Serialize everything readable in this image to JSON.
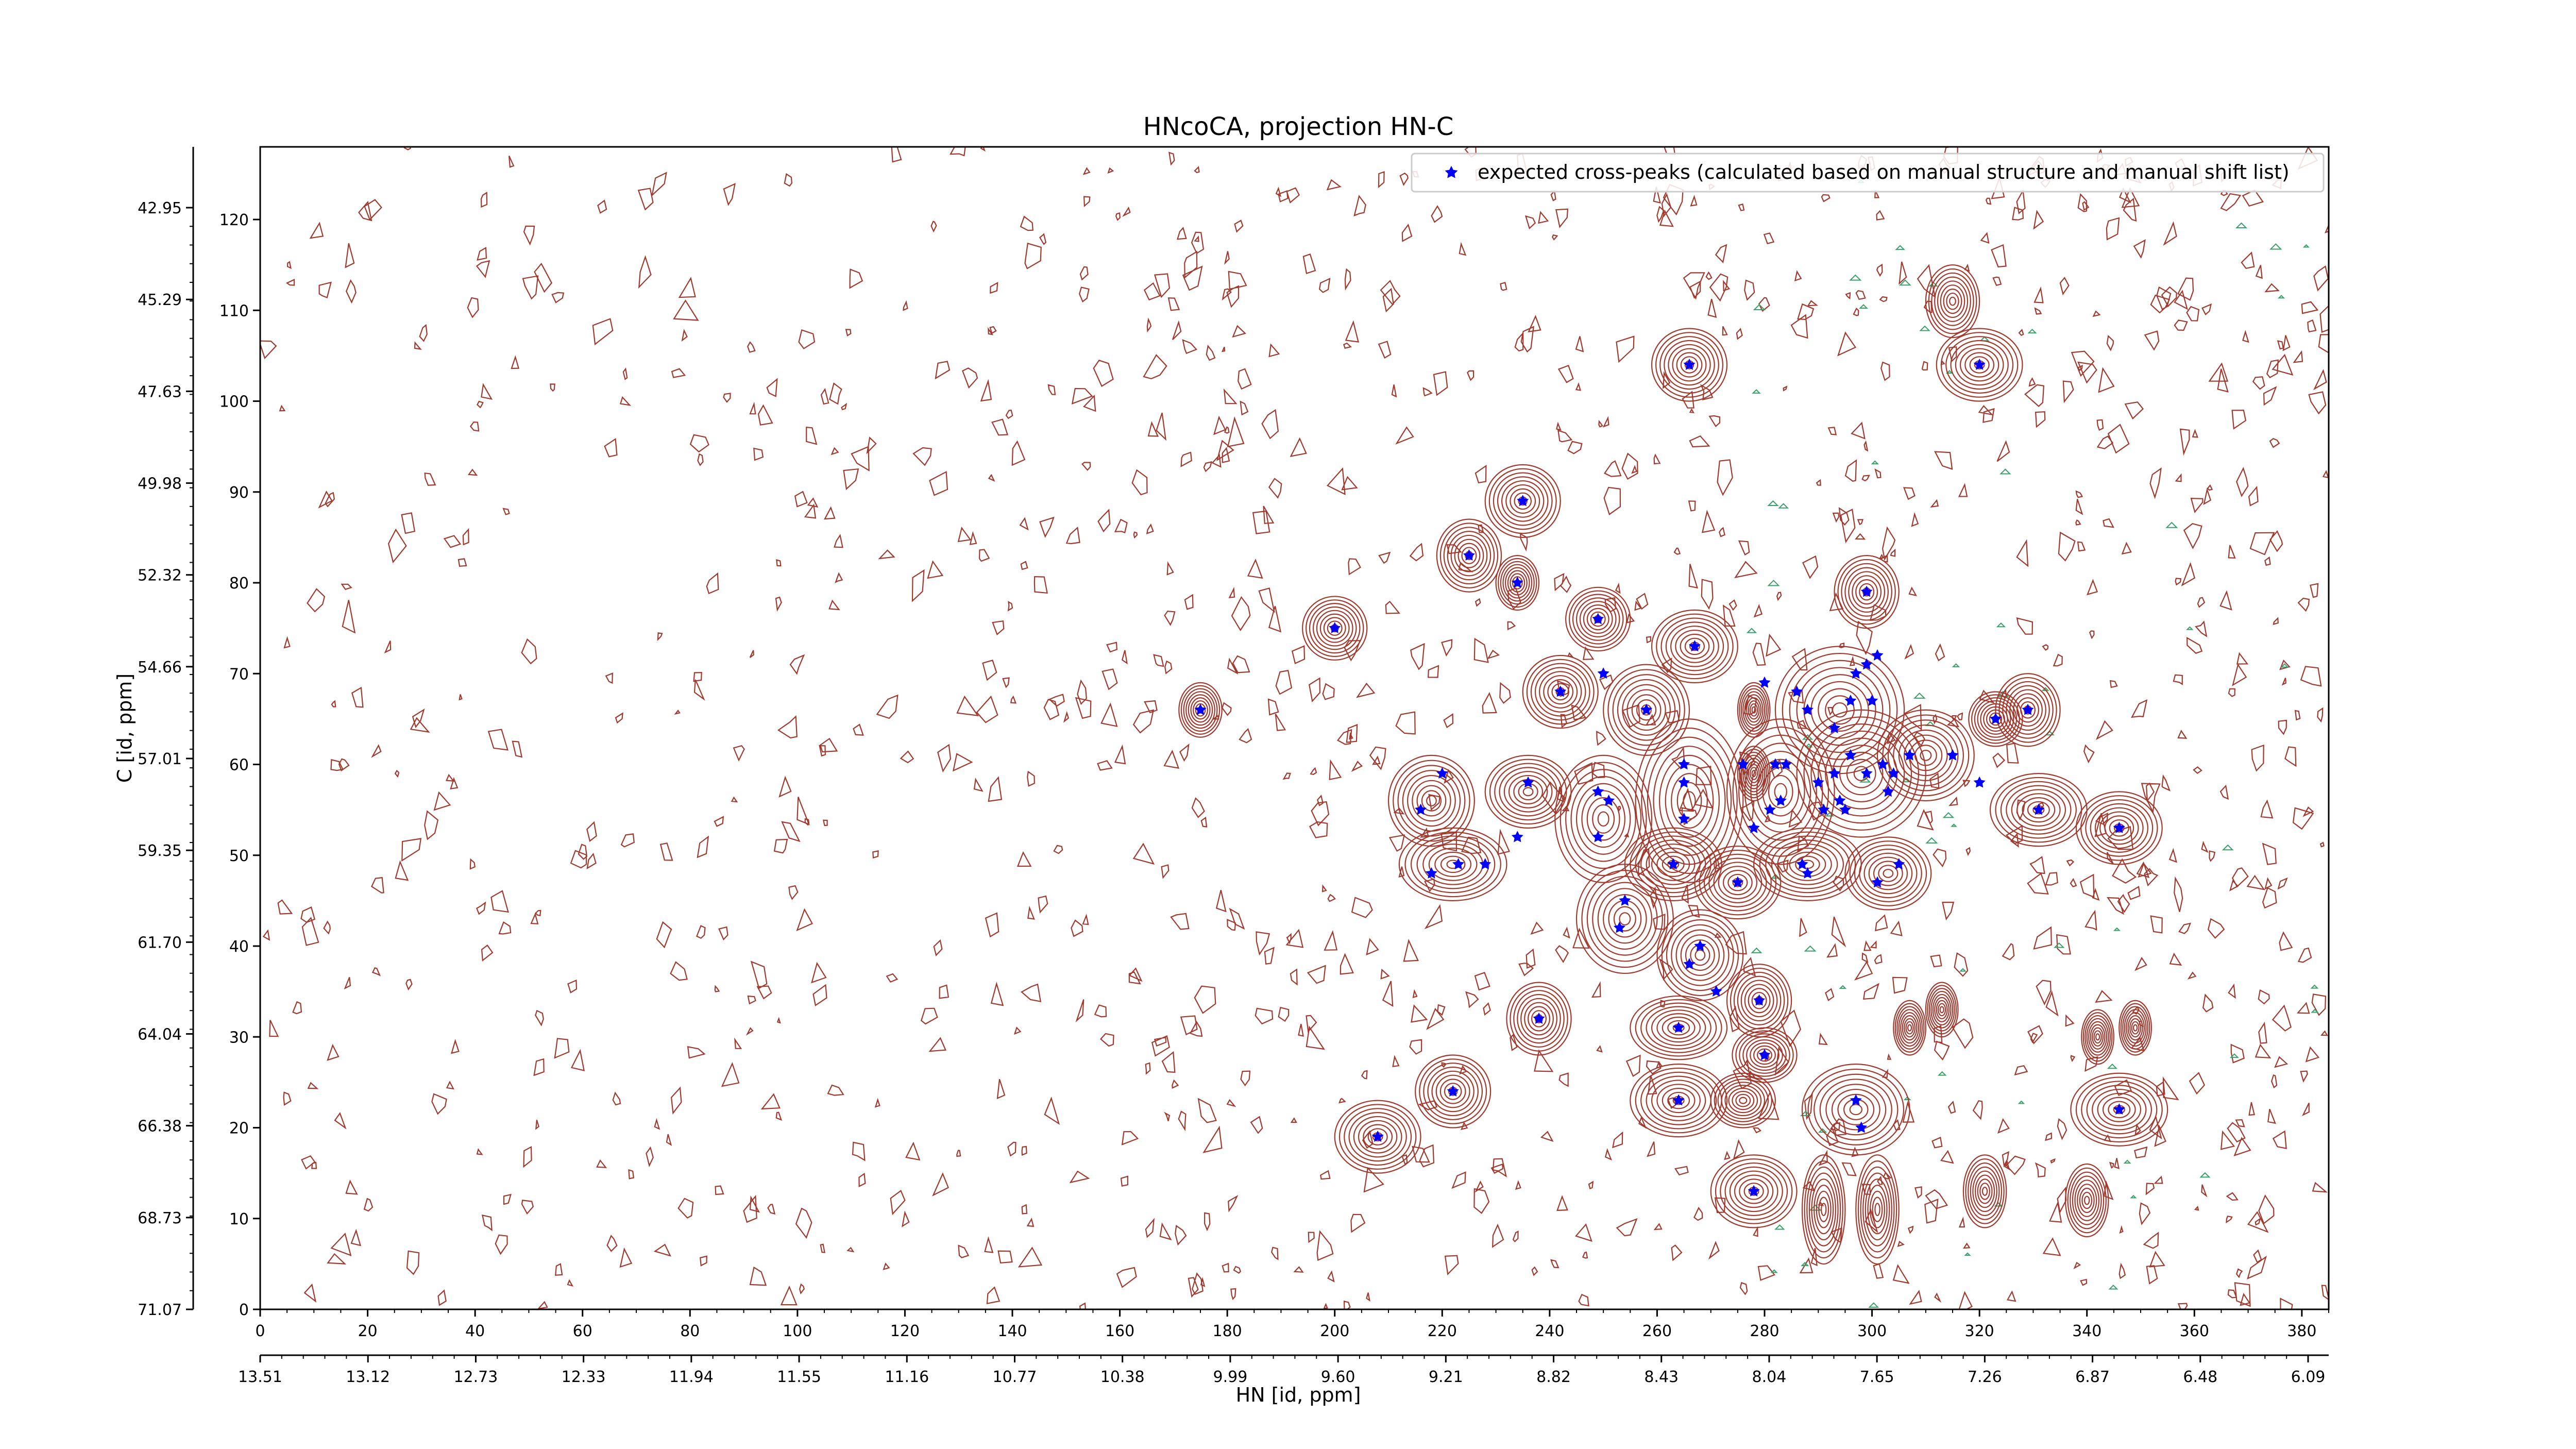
{
  "chart_data": {
    "type": "scatter",
    "title": "HNcoCA, projection HN-C",
    "xlabel": "HN [id, ppm]",
    "ylabel": "C [id, ppm]",
    "xlim": [
      0,
      385
    ],
    "ylim": [
      0,
      128
    ],
    "x_ticks": [
      0,
      20,
      40,
      60,
      80,
      100,
      120,
      140,
      160,
      180,
      200,
      220,
      240,
      260,
      280,
      300,
      320,
      340,
      360,
      380
    ],
    "y_ticks": [
      0,
      10,
      20,
      30,
      40,
      50,
      60,
      70,
      80,
      90,
      100,
      110,
      120
    ],
    "ppm_x_ticks": [
      "13.51",
      "13.12",
      "12.73",
      "12.33",
      "11.94",
      "11.55",
      "11.16",
      "10.77",
      "10.38",
      "9.99",
      "9.60",
      "9.21",
      "8.82",
      "8.43",
      "8.04",
      "7.65",
      "7.26",
      "6.87",
      "6.48",
      "6.09"
    ],
    "ppm_y_ticks": [
      "71.07",
      "68.73",
      "66.38",
      "64.04",
      "61.70",
      "59.35",
      "57.01",
      "54.66",
      "52.32",
      "49.98",
      "47.63",
      "45.29",
      "42.95"
    ],
    "legend": {
      "label": "expected cross-peaks (calculated based on manual structure and manual shift list)",
      "position": "top-right"
    },
    "colors": {
      "peaks": "#0000ff",
      "contour": "#a0392e",
      "contour_negative": "#3aa06a",
      "axis": "#000000"
    },
    "grid": false,
    "series": [
      {
        "name": "expected cross-peaks (calculated based on manual structure and manual shift list)",
        "points": [
          [
            175,
            66
          ],
          [
            200,
            75
          ],
          [
            225,
            83
          ],
          [
            234,
            80
          ],
          [
            235,
            89
          ],
          [
            266,
            104
          ],
          [
            320,
            104
          ],
          [
            249,
            76
          ],
          [
            250,
            70
          ],
          [
            242,
            68
          ],
          [
            267,
            73
          ],
          [
            258,
            66
          ],
          [
            280,
            69
          ],
          [
            288,
            66
          ],
          [
            293,
            64
          ],
          [
            299,
            71
          ],
          [
            297,
            70
          ],
          [
            301,
            72
          ],
          [
            300,
            67
          ],
          [
            296,
            67
          ],
          [
            286,
            68
          ],
          [
            299,
            79
          ],
          [
            307,
            61
          ],
          [
            315,
            61
          ],
          [
            329,
            66
          ],
          [
            323,
            65
          ],
          [
            220,
            59
          ],
          [
            216,
            55
          ],
          [
            236,
            58
          ],
          [
            234,
            52
          ],
          [
            249,
            57
          ],
          [
            251,
            56
          ],
          [
            249,
            52
          ],
          [
            265,
            60
          ],
          [
            265,
            58
          ],
          [
            265,
            54
          ],
          [
            276,
            60
          ],
          [
            282,
            60
          ],
          [
            284,
            60
          ],
          [
            283,
            56
          ],
          [
            281,
            55
          ],
          [
            293,
            59
          ],
          [
            290,
            58
          ],
          [
            296,
            61
          ],
          [
            299,
            59
          ],
          [
            304,
            59
          ],
          [
            302,
            60
          ],
          [
            303,
            57
          ],
          [
            294,
            56
          ],
          [
            295,
            55
          ],
          [
            291,
            55
          ],
          [
            278,
            53
          ],
          [
            218,
            48
          ],
          [
            223,
            49
          ],
          [
            228,
            49
          ],
          [
            263,
            49
          ],
          [
            275,
            47
          ],
          [
            287,
            49
          ],
          [
            288,
            48
          ],
          [
            301,
            47
          ],
          [
            305,
            49
          ],
          [
            254,
            45
          ],
          [
            253,
            42
          ],
          [
            268,
            40
          ],
          [
            266,
            38
          ],
          [
            271,
            35
          ],
          [
            279,
            34
          ],
          [
            264,
            31
          ],
          [
            238,
            32
          ],
          [
            280,
            28
          ],
          [
            264,
            23
          ],
          [
            297,
            23
          ],
          [
            298,
            20
          ],
          [
            346,
            22
          ],
          [
            222,
            24
          ],
          [
            208,
            19
          ],
          [
            278,
            13
          ],
          [
            331,
            55
          ],
          [
            346,
            53
          ],
          [
            320,
            58
          ]
        ]
      }
    ],
    "contour_peaks": [
      [
        175,
        66,
        4,
        3
      ],
      [
        200,
        75,
        6,
        3.5
      ],
      [
        225,
        83,
        6,
        4
      ],
      [
        234,
        80,
        4,
        3
      ],
      [
        235,
        89,
        7,
        4
      ],
      [
        266,
        104,
        7,
        4
      ],
      [
        320,
        104,
        8,
        4
      ],
      [
        315,
        111,
        5,
        4
      ],
      [
        249,
        76,
        6,
        3.5
      ],
      [
        242,
        68,
        7,
        4
      ],
      [
        267,
        73,
        8,
        4
      ],
      [
        258,
        66,
        8,
        5
      ],
      [
        299,
        79,
        6,
        4
      ],
      [
        329,
        66,
        6,
        4
      ],
      [
        323,
        65,
        5,
        3
      ],
      [
        310,
        61,
        9,
        5
      ],
      [
        218,
        56,
        8,
        5
      ],
      [
        236,
        57,
        8,
        4
      ],
      [
        250,
        54,
        9,
        7
      ],
      [
        266,
        56,
        10,
        9
      ],
      [
        283,
        57,
        10,
        8
      ],
      [
        294,
        66,
        12,
        7
      ],
      [
        298,
        59,
        12,
        7
      ],
      [
        331,
        55,
        9,
        4
      ],
      [
        346,
        53,
        8,
        4
      ],
      [
        222,
        49,
        10,
        4
      ],
      [
        263,
        49,
        9,
        4
      ],
      [
        275,
        47,
        8,
        4
      ],
      [
        288,
        49,
        10,
        4
      ],
      [
        303,
        48,
        8,
        4
      ],
      [
        254,
        43,
        9,
        6
      ],
      [
        268,
        39,
        8,
        5
      ],
      [
        279,
        34,
        6,
        4
      ],
      [
        264,
        31,
        9,
        3.5
      ],
      [
        238,
        32,
        6,
        4
      ],
      [
        280,
        28,
        6,
        3
      ],
      [
        264,
        23,
        9,
        4
      ],
      [
        276,
        23,
        6,
        3
      ],
      [
        297,
        22,
        10,
        5
      ],
      [
        346,
        22,
        9,
        4
      ],
      [
        222,
        24,
        7,
        4
      ],
      [
        208,
        19,
        8,
        4
      ],
      [
        278,
        13,
        8,
        4
      ],
      [
        291,
        11,
        4,
        6
      ],
      [
        301,
        11,
        4,
        6
      ],
      [
        321,
        13,
        4,
        4
      ],
      [
        340,
        12,
        4,
        4
      ],
      [
        313,
        33,
        3,
        3
      ],
      [
        307,
        31,
        3,
        3
      ],
      [
        342,
        30,
        3,
        3
      ],
      [
        349,
        31,
        3,
        3
      ],
      [
        278,
        66,
        3,
        3
      ],
      [
        278,
        59,
        3,
        3
      ]
    ]
  }
}
